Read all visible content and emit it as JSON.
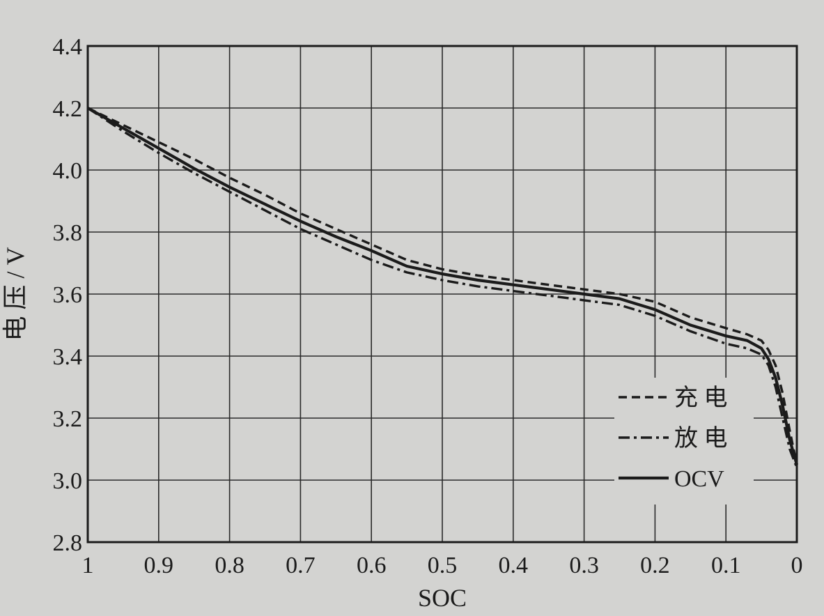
{
  "chart_data": {
    "type": "line",
    "title": "",
    "xlabel": "SOC",
    "ylabel": "电  压 / V",
    "xlim": [
      1,
      0
    ],
    "ylim": [
      2.8,
      4.4
    ],
    "x_reversed": true,
    "grid": true,
    "legend_position": "bottom-right",
    "x_ticks": [
      "1",
      "0.9",
      "0.8",
      "0.7",
      "0.6",
      "0.5",
      "0.4",
      "0.3",
      "0.2",
      "0.1",
      "0"
    ],
    "y_ticks": [
      "4.4",
      "4.2",
      "4.0",
      "3.8",
      "3.6",
      "3.4",
      "3.2",
      "3.0",
      "2.8"
    ],
    "series": [
      {
        "name": "充  电",
        "style": "dashed",
        "color": "#1b1b1b",
        "x": [
          1.0,
          0.95,
          0.9,
          0.85,
          0.8,
          0.75,
          0.7,
          0.65,
          0.6,
          0.55,
          0.5,
          0.45,
          0.4,
          0.35,
          0.3,
          0.25,
          0.2,
          0.15,
          0.1,
          0.07,
          0.05,
          0.04,
          0.03,
          0.02,
          0.01,
          0.0
        ],
        "y": [
          4.2,
          4.145,
          4.09,
          4.035,
          3.975,
          3.92,
          3.86,
          3.81,
          3.76,
          3.71,
          3.68,
          3.66,
          3.645,
          3.63,
          3.615,
          3.6,
          3.575,
          3.525,
          3.49,
          3.47,
          3.45,
          3.42,
          3.37,
          3.28,
          3.16,
          3.05
        ]
      },
      {
        "name": "放  电",
        "style": "dash-dot",
        "color": "#1b1b1b",
        "x": [
          1.0,
          0.95,
          0.9,
          0.85,
          0.8,
          0.75,
          0.7,
          0.65,
          0.6,
          0.55,
          0.5,
          0.45,
          0.4,
          0.35,
          0.3,
          0.25,
          0.2,
          0.15,
          0.1,
          0.07,
          0.05,
          0.04,
          0.03,
          0.02,
          0.01,
          0.0
        ],
        "y": [
          4.2,
          4.125,
          4.055,
          3.99,
          3.93,
          3.87,
          3.81,
          3.76,
          3.71,
          3.67,
          3.645,
          3.625,
          3.61,
          3.595,
          3.58,
          3.565,
          3.53,
          3.48,
          3.44,
          3.425,
          3.405,
          3.37,
          3.3,
          3.2,
          3.1,
          3.04
        ]
      },
      {
        "name": "OCV",
        "style": "solid",
        "color": "#1b1b1b",
        "x": [
          1.0,
          0.95,
          0.9,
          0.85,
          0.8,
          0.75,
          0.7,
          0.65,
          0.6,
          0.55,
          0.5,
          0.45,
          0.4,
          0.35,
          0.3,
          0.25,
          0.2,
          0.15,
          0.1,
          0.07,
          0.05,
          0.04,
          0.03,
          0.02,
          0.01,
          0.0
        ],
        "y": [
          4.2,
          4.135,
          4.07,
          4.005,
          3.945,
          3.89,
          3.835,
          3.785,
          3.74,
          3.69,
          3.665,
          3.645,
          3.63,
          3.615,
          3.6,
          3.585,
          3.55,
          3.5,
          3.465,
          3.45,
          3.425,
          3.39,
          3.33,
          3.24,
          3.13,
          3.05
        ]
      }
    ]
  }
}
